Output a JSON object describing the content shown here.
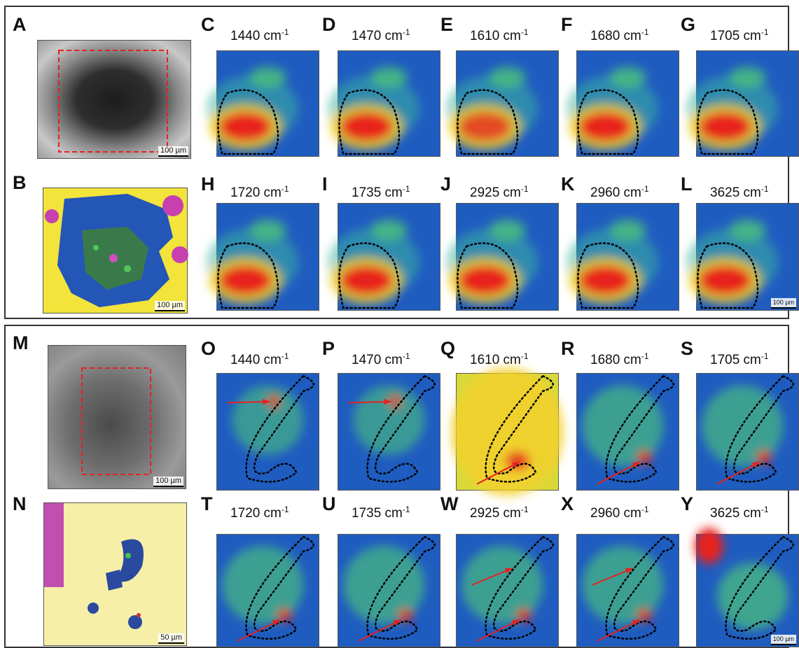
{
  "photos": {
    "A": {
      "letter": "A",
      "scalebar": "100 µm"
    },
    "B": {
      "letter": "B",
      "scalebar": "100 µm"
    },
    "M": {
      "letter": "M",
      "scalebar": "100 µm"
    },
    "N": {
      "letter": "N",
      "scalebar": "50 µm"
    }
  },
  "maps": [
    {
      "letter": "C",
      "wave": "1440 cm",
      "sup": "-1"
    },
    {
      "letter": "D",
      "wave": "1470 cm",
      "sup": "-1"
    },
    {
      "letter": "E",
      "wave": "1610 cm",
      "sup": "-1"
    },
    {
      "letter": "F",
      "wave": "1680 cm",
      "sup": "-1"
    },
    {
      "letter": "G",
      "wave": "1705 cm",
      "sup": "-1"
    },
    {
      "letter": "H",
      "wave": "1720 cm",
      "sup": "-1"
    },
    {
      "letter": "I",
      "wave": "1735 cm",
      "sup": "-1"
    },
    {
      "letter": "J",
      "wave": "2925 cm",
      "sup": "-1"
    },
    {
      "letter": "K",
      "wave": "2960 cm",
      "sup": "-1"
    },
    {
      "letter": "L",
      "wave": "3625 cm",
      "sup": "-1",
      "scalebar": "100 µm"
    },
    {
      "letter": "O",
      "wave": "1440 cm",
      "sup": "-1"
    },
    {
      "letter": "P",
      "wave": "1470 cm",
      "sup": "-1"
    },
    {
      "letter": "Q",
      "wave": "1610 cm",
      "sup": "-1"
    },
    {
      "letter": "R",
      "wave": "1680 cm",
      "sup": "-1"
    },
    {
      "letter": "S",
      "wave": "1705 cm",
      "sup": "-1"
    },
    {
      "letter": "T",
      "wave": "1720 cm",
      "sup": "-1"
    },
    {
      "letter": "U",
      "wave": "1735 cm",
      "sup": "-1"
    },
    {
      "letter": "W",
      "wave": "2925 cm",
      "sup": "-1"
    },
    {
      "letter": "X",
      "wave": "2960 cm",
      "sup": "-1"
    },
    {
      "letter": "Y",
      "wave": "3625 cm",
      "sup": "-1",
      "scalebar": "100 µm"
    }
  ],
  "colors": {
    "dash_box": "#e52222",
    "arrow": "#e52222",
    "outline": "#000000",
    "map_low": "#1a4fb5",
    "map_mid": "#3cb371",
    "map_high": "#e8211b"
  }
}
